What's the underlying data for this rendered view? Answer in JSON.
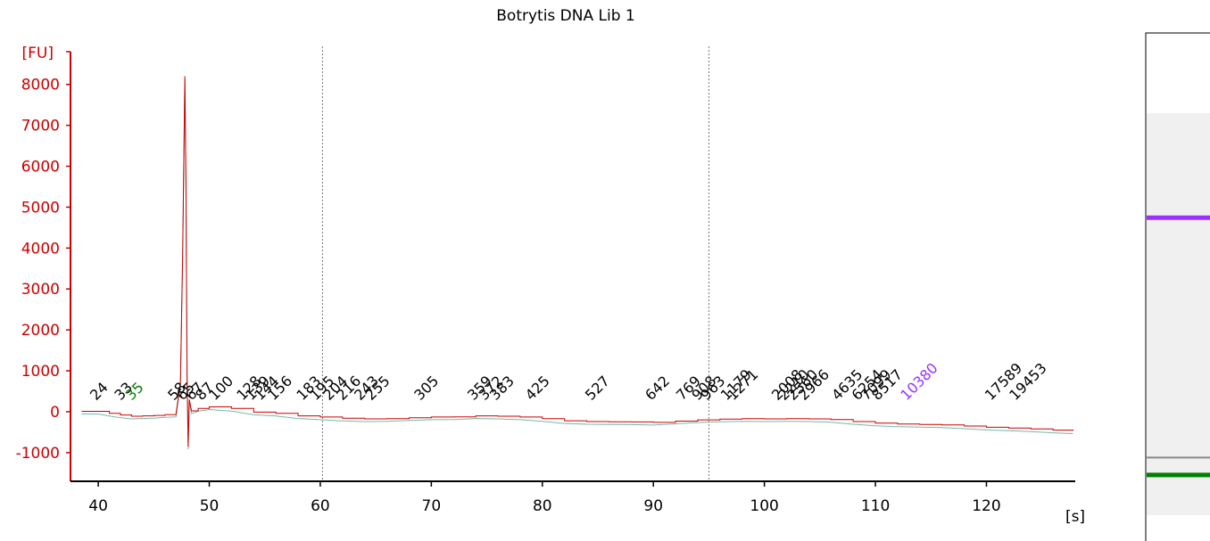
{
  "chart_data": {
    "type": "line",
    "title": "Botrytis DNA Lib 1",
    "ylabel": "[FU]",
    "xlabel": "[s]",
    "xlim": [
      37.5,
      128
    ],
    "ylim": [
      -1700,
      8800
    ],
    "x_ticks": [
      40,
      50,
      60,
      70,
      80,
      90,
      100,
      110,
      120
    ],
    "y_ticks": [
      8000,
      7000,
      6000,
      5000,
      4000,
      3000,
      2000,
      1000,
      0,
      -1000
    ],
    "y_tick_labels": [
      "8000",
      "7000",
      "6000",
      "5000",
      "4000",
      "3000",
      "2000",
      "1000",
      "0",
      "-1000"
    ],
    "grid": false,
    "dashed_markers_x": [
      60.2,
      95
    ],
    "colors": {
      "trace": "#cc0000",
      "axis": "#cc0000",
      "baseline": "#3a9a8a",
      "lower_marker": "#008000",
      "upper_marker": "#9b30ff",
      "peak_label": "#000000"
    },
    "series": [
      {
        "x": [
          38.5,
          40,
          41,
          42,
          43,
          44,
          45,
          46,
          47,
          47.4,
          47.6,
          47.8,
          47.9,
          48.0,
          48.1,
          48.2,
          48.4,
          49,
          50,
          52,
          54,
          56,
          58,
          60,
          62,
          64,
          66,
          68,
          70,
          72,
          74,
          76,
          78,
          80,
          82,
          84,
          86,
          88,
          90,
          92,
          94,
          96,
          98,
          100,
          102,
          104,
          106,
          108,
          110,
          112,
          114,
          116,
          118,
          120,
          122,
          124,
          126,
          127.8
        ],
        "y": [
          10,
          10,
          -40,
          -80,
          -110,
          -100,
          -90,
          -70,
          -60,
          700,
          3800,
          8200,
          5600,
          900,
          -850,
          300,
          20,
          80,
          120,
          80,
          -10,
          -40,
          -100,
          -130,
          -160,
          -175,
          -170,
          -150,
          -130,
          -125,
          -100,
          -110,
          -130,
          -170,
          -220,
          -240,
          -245,
          -250,
          -260,
          -230,
          -200,
          -180,
          -170,
          -175,
          -170,
          -175,
          -190,
          -240,
          -280,
          -300,
          -310,
          -320,
          -350,
          -380,
          -400,
          -420,
          -450,
          -470
        ]
      }
    ],
    "peak_labels": [
      {
        "x": 39.8,
        "text": "24",
        "color": "#000000"
      },
      {
        "x": 42.0,
        "text": "33",
        "color": "#000000"
      },
      {
        "x": 43.0,
        "text": "35",
        "color": "#008000"
      },
      {
        "x": 46.8,
        "text": "58",
        "color": "#000000"
      },
      {
        "x": 47.6,
        "text": "65",
        "color": "#000000"
      },
      {
        "x": 48.4,
        "text": "67",
        "color": "#000000"
      },
      {
        "x": 49.3,
        "text": "87",
        "color": "#000000"
      },
      {
        "x": 50.5,
        "text": "100",
        "color": "#000000"
      },
      {
        "x": 53.0,
        "text": "128",
        "color": "#000000"
      },
      {
        "x": 53.8,
        "text": "139",
        "color": "#000000"
      },
      {
        "x": 54.6,
        "text": "144",
        "color": "#000000"
      },
      {
        "x": 55.8,
        "text": "156",
        "color": "#000000"
      },
      {
        "x": 58.4,
        "text": "183",
        "color": "#000000"
      },
      {
        "x": 59.6,
        "text": "195",
        "color": "#000000"
      },
      {
        "x": 60.8,
        "text": "204",
        "color": "#000000"
      },
      {
        "x": 62.0,
        "text": "216",
        "color": "#000000"
      },
      {
        "x": 63.6,
        "text": "243",
        "color": "#000000"
      },
      {
        "x": 64.6,
        "text": "255",
        "color": "#000000"
      },
      {
        "x": 69.0,
        "text": "305",
        "color": "#000000"
      },
      {
        "x": 73.8,
        "text": "359",
        "color": "#000000"
      },
      {
        "x": 74.8,
        "text": "372",
        "color": "#000000"
      },
      {
        "x": 75.8,
        "text": "383",
        "color": "#000000"
      },
      {
        "x": 79.0,
        "text": "425",
        "color": "#000000"
      },
      {
        "x": 84.4,
        "text": "527",
        "color": "#000000"
      },
      {
        "x": 89.8,
        "text": "642",
        "color": "#000000"
      },
      {
        "x": 92.6,
        "text": "769",
        "color": "#000000"
      },
      {
        "x": 94.0,
        "text": "908",
        "color": "#000000"
      },
      {
        "x": 94.8,
        "text": "963",
        "color": "#000000"
      },
      {
        "x": 96.6,
        "text": "1179",
        "color": "#000000"
      },
      {
        "x": 97.2,
        "text": "1271",
        "color": "#000000"
      },
      {
        "x": 101.2,
        "text": "2008",
        "color": "#000000"
      },
      {
        "x": 101.8,
        "text": "2210",
        "color": "#000000"
      },
      {
        "x": 102.6,
        "text": "2560",
        "color": "#000000"
      },
      {
        "x": 103.6,
        "text": "2966",
        "color": "#000000"
      },
      {
        "x": 106.6,
        "text": "4635",
        "color": "#000000"
      },
      {
        "x": 108.4,
        "text": "6254",
        "color": "#000000"
      },
      {
        "x": 109.2,
        "text": "7099",
        "color": "#000000"
      },
      {
        "x": 110.2,
        "text": "8517",
        "color": "#000000"
      },
      {
        "x": 112.8,
        "text": "10380",
        "color": "#9b30ff"
      },
      {
        "x": 120.4,
        "text": "17589",
        "color": "#000000"
      },
      {
        "x": 122.6,
        "text": "19453",
        "color": "#000000"
      }
    ],
    "gel_lane": {
      "background": "#f0f0f0",
      "bands": [
        {
          "level": 0.26,
          "color": "#9b30ff"
        },
        {
          "level": 0.86,
          "color": "#8a8a8a"
        },
        {
          "level": 0.9,
          "color": "#008000"
        }
      ]
    }
  }
}
